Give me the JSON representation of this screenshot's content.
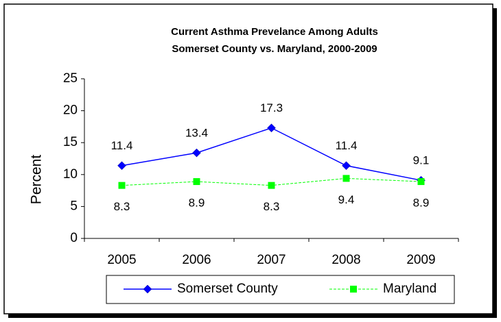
{
  "chart_data": {
    "type": "line",
    "title": "Current Asthma Prevelance Among Adults",
    "subtitle": "Somerset County vs. Maryland, 2000-2009",
    "y_label": "Percent",
    "categories": [
      "2005",
      "2006",
      "2007",
      "2008",
      "2009"
    ],
    "series": [
      {
        "name": "Somerset County",
        "color": "#0000ff",
        "values": [
          11.4,
          13.4,
          17.3,
          11.4,
          9.1
        ]
      },
      {
        "name": "Maryland",
        "color": "#00ff00",
        "values": [
          8.3,
          8.9,
          8.3,
          9.4,
          8.9
        ]
      }
    ],
    "ylim": [
      0,
      25
    ],
    "yticks": [
      0,
      5,
      10,
      15,
      20,
      25
    ],
    "grid": false,
    "legend": "bottom"
  }
}
